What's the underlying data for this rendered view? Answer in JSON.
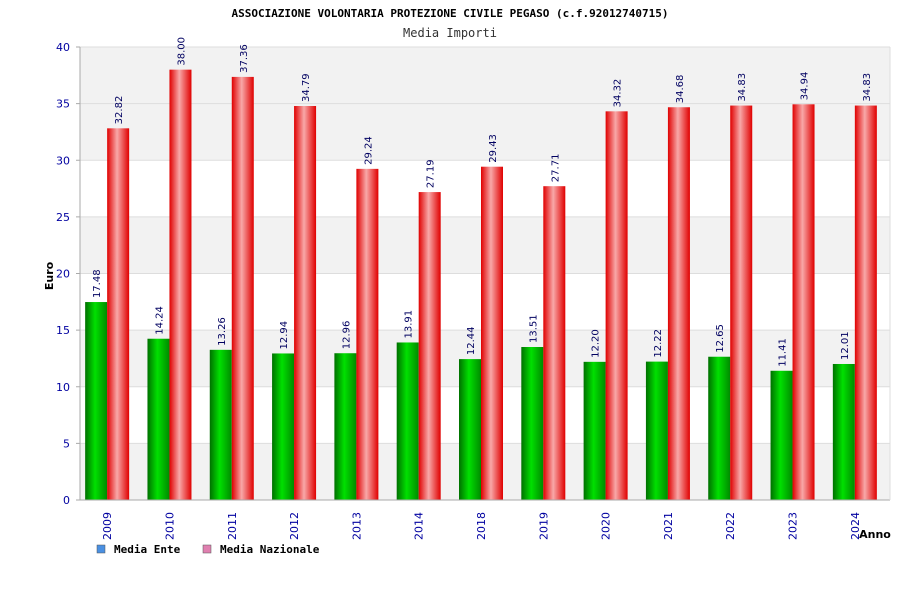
{
  "chart_data": {
    "type": "bar",
    "title": "ASSOCIAZIONE VOLONTARIA PROTEZIONE CIVILE PEGASO (c.f.92012740715)",
    "subtitle": "Media Importi",
    "xlabel": "Anno",
    "ylabel": "Euro",
    "ylim": [
      0,
      40
    ],
    "yticks": [
      0,
      5,
      10,
      15,
      20,
      25,
      30,
      35,
      40
    ],
    "grid": true,
    "legend_position": "bottom-left",
    "categories": [
      "2009",
      "2010",
      "2011",
      "2012",
      "2013",
      "2014",
      "2018",
      "2019",
      "2020",
      "2021",
      "2022",
      "2023",
      "2024"
    ],
    "series": [
      {
        "name": "Media Ente",
        "color": "#00c000",
        "legend_color": "#4a90e2",
        "values": [
          17.48,
          14.24,
          13.26,
          12.94,
          12.96,
          13.91,
          12.44,
          13.51,
          12.2,
          12.22,
          12.65,
          11.41,
          12.01
        ],
        "labels": [
          "17.48",
          "14.24",
          "13.26",
          "12.94",
          "12.96",
          "13.91",
          "12.44",
          "13.51",
          "12.20",
          "12.22",
          "12.65",
          "11.41",
          "12.01"
        ]
      },
      {
        "name": "Media Nazionale",
        "color": "#ff0000",
        "legend_color": "#e080b0",
        "values": [
          32.82,
          38.0,
          37.36,
          34.79,
          29.24,
          27.19,
          29.43,
          27.71,
          34.32,
          34.68,
          34.83,
          34.94,
          34.83
        ],
        "labels": [
          "32.82",
          "38.00",
          "37.36",
          "34.79",
          "29.24",
          "27.19",
          "29.43",
          "27.71",
          "34.32",
          "34.68",
          "34.83",
          "34.94",
          "34.83"
        ]
      }
    ]
  }
}
